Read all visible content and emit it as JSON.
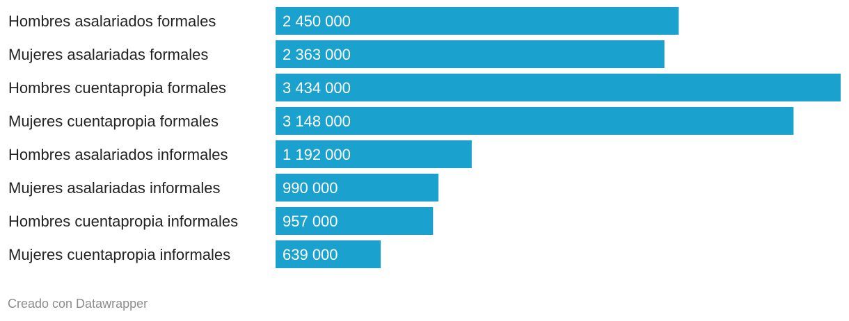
{
  "chart_data": {
    "type": "bar",
    "orientation": "horizontal",
    "categories": [
      "Hombres asalariados formales",
      "Mujeres asalariadas formales",
      "Hombres cuentapropia formales",
      "Mujeres cuentapropia formales",
      "Hombres asalariados informales",
      "Mujeres asalariadas informales",
      "Hombres cuentapropia informales",
      "Mujeres cuentapropia informales"
    ],
    "values": [
      2450000,
      2363000,
      3434000,
      3148000,
      1192000,
      990000,
      957000,
      639000
    ],
    "value_labels": [
      "2 450 000",
      "2 363 000",
      "3 434 000",
      "3 148 000",
      "1 192 000",
      "990 000",
      "957 000",
      "639 000"
    ],
    "title": "",
    "xlabel": "",
    "ylabel": "",
    "xlim": [
      0,
      3434000
    ],
    "grid": false,
    "colors": {
      "bar": "#1ba1cd",
      "value_text": "#ffffff",
      "label_text": "#222222"
    }
  },
  "footer": {
    "credit": "Creado con Datawrapper"
  }
}
